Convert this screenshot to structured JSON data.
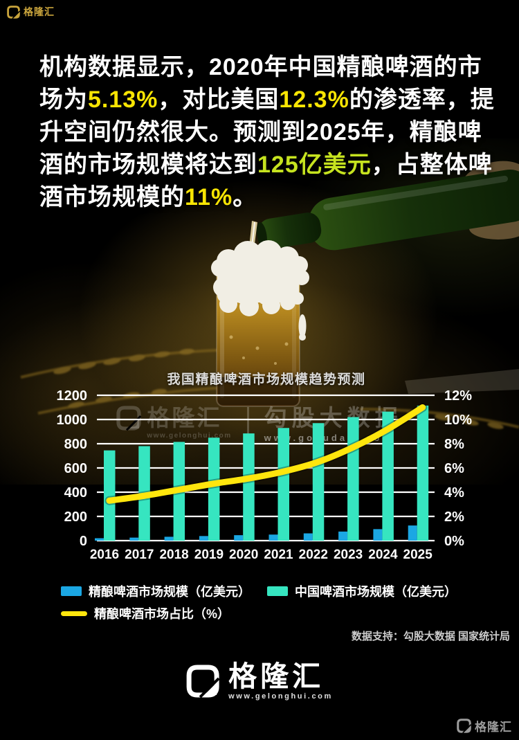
{
  "top_left_logo": {
    "brand": "格隆汇"
  },
  "headline": {
    "segments": [
      {
        "text": "机构数据显示，2020年中国精酿啤酒的市\n场为",
        "color": "white"
      },
      {
        "text": "5.13%",
        "color": "yellow"
      },
      {
        "text": "，对比美国",
        "color": "white"
      },
      {
        "text": "12.3%",
        "color": "yellow"
      },
      {
        "text": "的渗透率，提\n升空间仍然很大。预测到2025年，精酿啤\n酒的市场规模将达到",
        "color": "white"
      },
      {
        "text": "125亿美元",
        "color": "green"
      },
      {
        "text": "，占整体啤\n酒市场规模的",
        "color": "white"
      },
      {
        "text": "11%",
        "color": "yellow"
      },
      {
        "text": "。",
        "color": "white"
      }
    ]
  },
  "colors": {
    "white": "#FFFFFF",
    "yellow": "#F8E503",
    "green": "#C6E31F",
    "blue": "#1BA7E3",
    "cyan": "#36E5C0",
    "line_yellow": "#FFE60D"
  },
  "chart_data": {
    "type": "bar",
    "title": "我国精酿啤酒市场规模趋势预测",
    "categories": [
      "2016",
      "2017",
      "2018",
      "2019",
      "2020",
      "2021",
      "2022",
      "2023",
      "2024",
      "2025"
    ],
    "series": [
      {
        "name": "精酿啤酒市场规模（亿美元）",
        "kind": "bar",
        "axis": "left",
        "color": "#1BA7E3",
        "values": [
          20,
          25,
          32,
          38,
          45,
          50,
          60,
          75,
          95,
          125
        ]
      },
      {
        "name": "中国啤酒市场规模（亿美元）",
        "kind": "bar",
        "axis": "left",
        "color": "#36E5C0",
        "values": [
          745,
          780,
          815,
          850,
          885,
          930,
          970,
          1020,
          1065,
          1115
        ]
      },
      {
        "name": "精酿啤酒市场占比（%）",
        "kind": "line",
        "axis": "right",
        "color": "#FFE60D",
        "values": [
          3.3,
          3.7,
          4.2,
          4.7,
          5.13,
          5.7,
          6.5,
          7.7,
          9.2,
          11
        ]
      }
    ],
    "left_axis": {
      "min": 0,
      "max": 1200,
      "ticks": [
        "0",
        "200",
        "400",
        "600",
        "800",
        "1000",
        "1200"
      ]
    },
    "right_axis": {
      "min": 0,
      "max": 12,
      "ticks": [
        "0%",
        "2%",
        "4%",
        "6%",
        "8%",
        "10%",
        "12%"
      ]
    },
    "grid": true,
    "legend_position": "bottom"
  },
  "watermark": {
    "brand": "格隆汇",
    "brand_url": "www.gelonghui.com",
    "partner": "勾股大数据",
    "partner_url": "www.gogudata.com"
  },
  "data_support": "数据支持：勾股大数据 国家统计局",
  "footer_logo": {
    "brand": "格隆汇",
    "url": "www.gelonghui.com"
  },
  "corner_logo": {
    "brand": "格隆汇"
  }
}
